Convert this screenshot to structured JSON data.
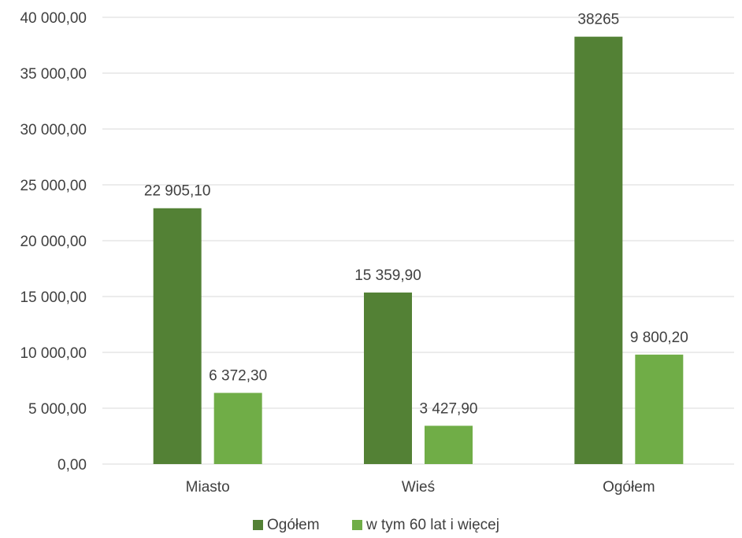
{
  "chart_data": {
    "type": "bar",
    "title": "",
    "xlabel": "",
    "ylabel": "",
    "categories": [
      "Miasto",
      "Wieś",
      "Ogółem"
    ],
    "series": [
      {
        "name": "Ogółem",
        "color": "#538135",
        "values": [
          22905.1,
          15359.9,
          38265
        ],
        "labels": [
          "22 905,10",
          "15 359,90",
          "38265"
        ]
      },
      {
        "name": "w tym 60 lat i więcej",
        "color": "#70ad47",
        "values": [
          6372.3,
          3427.9,
          9800.2
        ],
        "labels": [
          "6 372,30",
          "3 427,90",
          "9 800,20"
        ]
      }
    ],
    "ylim": [
      0,
      40000
    ],
    "yticks": [
      0,
      5000,
      10000,
      15000,
      20000,
      25000,
      30000,
      35000,
      40000
    ],
    "ytick_labels": [
      "0,00",
      "5 000,00",
      "10 000,00",
      "15 000,00",
      "20 000,00",
      "25 000,00",
      "30 000,00",
      "35 000,00",
      "40 000,00"
    ],
    "grid": true,
    "legend_position": "bottom"
  }
}
